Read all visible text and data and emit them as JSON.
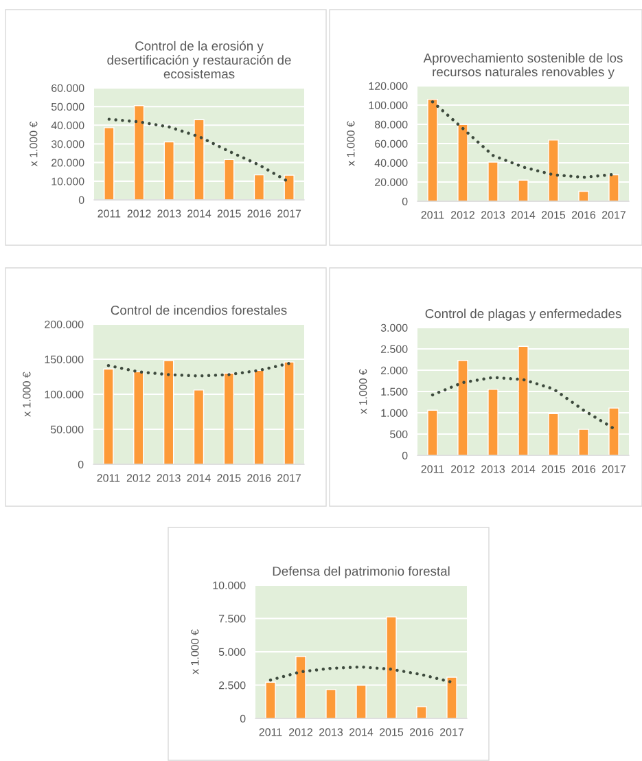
{
  "chart_data": [
    {
      "type": "bar",
      "title": "Control de la erosión y desertificación y restauración de ecosistemas",
      "ylabel": "x 1.000 €",
      "categories": [
        "2011",
        "2012",
        "2013",
        "2014",
        "2015",
        "2016",
        "2017"
      ],
      "ylim": [
        0,
        60000
      ],
      "yticks": [
        0,
        {
          "value": 10000,
          "label": "10.000"
        },
        {
          "value": 20000,
          "label": "20.000"
        },
        {
          "value": 30000,
          "label": "30.000"
        },
        {
          "value": 40000,
          "label": "40.000"
        },
        {
          "value": 50000,
          "label": "50.000"
        },
        {
          "value": 60000,
          "label": "60.000"
        }
      ],
      "grid": "y",
      "series": [
        {
          "color": "#fd9a38",
          "values": [
            38700,
            50500,
            31100,
            43000,
            21600,
            13400,
            13200
          ]
        },
        {
          "type": "line",
          "color": "#3d4a3d",
          "line_style": "dotted",
          "marker": "none",
          "values": [
            43200,
            41800,
            39100,
            33900,
            26000,
            18700,
            9500
          ]
        }
      ]
    },
    {
      "type": "bar",
      "title": "Aprovechamiento sostenible de los recursos naturales renovables y",
      "ylabel": "x 1.000 €",
      "categories": [
        "2011",
        "2012",
        "2013",
        "2014",
        "2015",
        "2016",
        "2017"
      ],
      "ylim": [
        0,
        120000
      ],
      "yticks": [
        0,
        {
          "value": 20000,
          "label": "20.000"
        },
        {
          "value": 40000,
          "label": "40.000"
        },
        {
          "value": 60000,
          "label": "60.000"
        },
        {
          "value": 80000,
          "label": "80.000"
        },
        {
          "value": 100000,
          "label": "100.000"
        },
        {
          "value": 120000,
          "label": "120.000"
        }
      ],
      "grid": "y",
      "series": [
        {
          "color": "#fd9a38",
          "values": [
            106000,
            79800,
            40700,
            22000,
            63700,
            10400,
            27500
          ]
        },
        {
          "type": "line",
          "color": "#3d4a3d",
          "line_style": "dotted",
          "marker": "none",
          "values": [
            103400,
            75700,
            47600,
            35500,
            27500,
            24900,
            27900
          ]
        }
      ]
    },
    {
      "type": "bar",
      "title": "Control de incendios forestales",
      "ylabel": "x 1.000 €",
      "categories": [
        "2011",
        "2012",
        "2013",
        "2014",
        "2015",
        "2016",
        "2017"
      ],
      "ylim": [
        0,
        200000
      ],
      "yticks": [
        0,
        {
          "value": 50000,
          "label": "50.000"
        },
        {
          "value": 100000,
          "label": "100.000"
        },
        {
          "value": 150000,
          "label": "150.000"
        },
        {
          "value": 200000,
          "label": "200.000"
        }
      ],
      "grid": "y",
      "series": [
        {
          "color": "#fd9a38",
          "values": [
            136000,
            132000,
            148000,
            106000,
            130000,
            134000,
            146000
          ]
        },
        {
          "type": "line",
          "color": "#3d4a3d",
          "line_style": "dotted",
          "marker": "none",
          "values": [
            141000,
            132000,
            128000,
            126000,
            128000,
            134000,
            144000
          ]
        }
      ]
    },
    {
      "type": "bar",
      "title": "Control de plagas y enfermedades",
      "ylabel": "x 1.000 €",
      "categories": [
        "2011",
        "2012",
        "2013",
        "2014",
        "2015",
        "2016",
        "2017"
      ],
      "ylim": [
        0,
        3000
      ],
      "yticks": [
        0,
        500,
        {
          "value": 1000,
          "label": "1.000"
        },
        {
          "value": 1500,
          "label": "1.500"
        },
        {
          "value": 2000,
          "label": "2.000"
        },
        {
          "value": 2500,
          "label": "2.500"
        },
        {
          "value": 3000,
          "label": "3.000"
        }
      ],
      "grid": "y",
      "series": [
        {
          "color": "#fd9a38",
          "values": [
            1060,
            2230,
            1550,
            2560,
            980,
            610,
            1110
          ]
        },
        {
          "type": "line",
          "color": "#3d4a3d",
          "line_style": "dotted",
          "marker": "none",
          "values": [
            1420,
            1710,
            1830,
            1780,
            1560,
            1060,
            630
          ]
        }
      ]
    },
    {
      "type": "bar",
      "title": "Defensa del patrimonio forestal",
      "ylabel": "x 1.000 €",
      "categories": [
        "2011",
        "2012",
        "2013",
        "2014",
        "2015",
        "2016",
        "2017"
      ],
      "ylim": [
        0,
        10000
      ],
      "yticks": [
        0,
        {
          "value": 2500,
          "label": "2.500"
        },
        {
          "value": 5000,
          "label": "5.000"
        },
        {
          "value": 7500,
          "label": "7.500"
        },
        {
          "value": 10000,
          "label": "10.000"
        }
      ],
      "grid": "y",
      "series": [
        {
          "color": "#fd9a38",
          "values": [
            2720,
            4650,
            2160,
            2480,
            7620,
            880,
            3090
          ]
        },
        {
          "type": "line",
          "color": "#3d4a3d",
          "line_style": "dotted",
          "marker": "none",
          "values": [
            2880,
            3500,
            3760,
            3860,
            3690,
            3290,
            2720
          ]
        }
      ]
    }
  ]
}
